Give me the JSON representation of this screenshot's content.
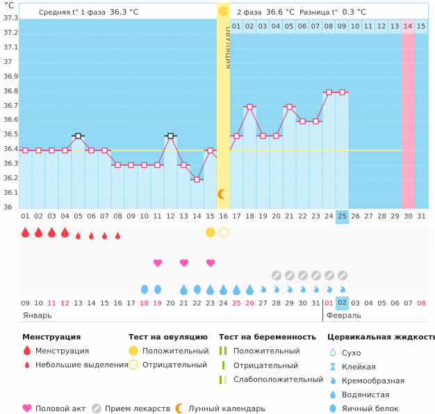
{
  "unit_label": "°C",
  "header": {
    "phase1_label": "Средняя t° 1 фаза",
    "phase1_value": "36.3 °C",
    "phase2_label": "2 фаза",
    "phase2_value": "36.6 °C",
    "diff_label": "Разница t°",
    "diff_value": "0.3 °C"
  },
  "ovulation_label": "ОВУЛЯЦИЯ",
  "top_cycle_days": [
    "01",
    "02",
    "03",
    "04",
    "05",
    "06",
    "07",
    "08",
    "09",
    "10",
    "11",
    "12",
    "13",
    "14",
    "15"
  ],
  "top_cycle_highlight": "14",
  "colors": {
    "plot_bg": "#91d9f3",
    "bar_fill": "#cdeefb",
    "line": "#e8336a",
    "ovulation": "#fff19c",
    "highlight_pink": "#ffadc6",
    "coverline": "#fff39a",
    "menstruation": "#f2404b",
    "heart": "#ff59b4",
    "pill": "#c8c8c8",
    "cervical": "#6fc0ee",
    "ov_test": "#ffd84d",
    "preg_test": "#8cbd1b",
    "moon": "#f4930f",
    "red_date": "#ee2a5b"
  },
  "chart_data": {
    "type": "line",
    "title": "",
    "ylabel": "°C",
    "ylim": [
      36.0,
      37.3
    ],
    "yticks": [
      "37.3",
      "37.2",
      "37.1",
      "37",
      "36.9",
      "36.8",
      "36.7",
      "36.6",
      "36.5",
      "36.4",
      "36.3",
      "36.2",
      "36.1",
      "36"
    ],
    "x": [
      "01",
      "02",
      "03",
      "04",
      "05",
      "06",
      "07",
      "08",
      "09",
      "10",
      "11",
      "12",
      "13",
      "14",
      "15",
      "16",
      "17",
      "18",
      "19",
      "20",
      "21",
      "22",
      "23",
      "24",
      "25",
      "26",
      "27",
      "28",
      "29",
      "30",
      "31"
    ],
    "series": [
      {
        "name": "BBT",
        "values": [
          36.4,
          36.4,
          36.4,
          36.4,
          36.5,
          36.4,
          36.4,
          36.3,
          36.3,
          36.3,
          36.3,
          36.5,
          36.3,
          36.2,
          36.4,
          36.3,
          36.5,
          36.7,
          36.5,
          36.5,
          36.7,
          36.6,
          36.6,
          36.8,
          36.8
        ]
      }
    ],
    "excluded_points": [
      5,
      12
    ],
    "coverline": 36.4,
    "coverline_until_day": 30,
    "ovulation_day": 16,
    "highlight_day": 30,
    "today_day": 25,
    "grid": true
  },
  "calendar_dates": [
    "09",
    "10",
    "11",
    "12",
    "13",
    "14",
    "15",
    "16",
    "17",
    "18",
    "19",
    "20",
    "21",
    "22",
    "23",
    "24",
    "25",
    "26",
    "27",
    "28",
    "29",
    "30",
    "31",
    "01",
    "02",
    "03",
    "04",
    "05",
    "06",
    "07",
    "08"
  ],
  "red_dates_idx": [
    2,
    3,
    9,
    10,
    16,
    17,
    23,
    30
  ],
  "today_date_idx": 24,
  "months": {
    "first": "Январь",
    "second": "Февраль"
  },
  "markers": {
    "menstruation_heavy": [
      1,
      2,
      3,
      4
    ],
    "menstruation_light": [
      5,
      6,
      7,
      8
    ],
    "ov_test_positive": [
      15
    ],
    "ov_test_negative": [
      16
    ],
    "intercourse": [
      11,
      13,
      15
    ],
    "medication": [
      20,
      21,
      22,
      23,
      24,
      25
    ],
    "cervical_egg_white": [
      10,
      11,
      14
    ],
    "cervical_watery": [
      13,
      15,
      16,
      17,
      18
    ],
    "cervical_creamy": [
      19,
      20,
      21,
      22,
      23,
      24,
      25
    ],
    "moon_day": 16
  },
  "legend": {
    "menstruation": {
      "title": "Менструация",
      "items": [
        "Менструация",
        "Небольшие выделения"
      ]
    },
    "ovulation_test": {
      "title": "Тест на овуляцию",
      "items": [
        "Положительный",
        "Отрицательный"
      ]
    },
    "pregnancy_test": {
      "title": "Тест на беременность",
      "items": [
        "Положительный",
        "Отрицательный",
        "Слабоположительный"
      ]
    },
    "cervical": {
      "title": "Цервикальная жидкость",
      "items": [
        "Сухо",
        "Клейкая",
        "Кремообразная",
        "Водянистая",
        "Яичный белок"
      ]
    },
    "other": [
      "Половой акт",
      "Прием лекарств",
      "Лунный календарь"
    ]
  }
}
